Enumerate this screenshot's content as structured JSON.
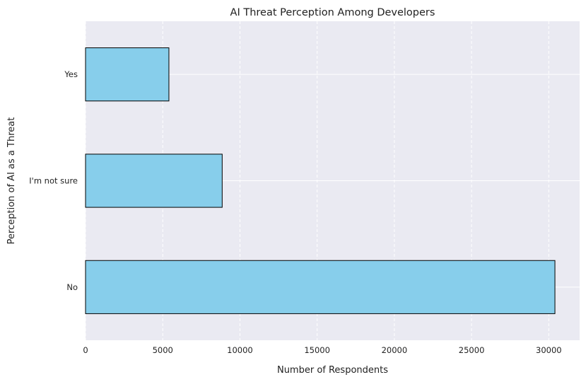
{
  "chart_data": {
    "type": "bar",
    "orientation": "horizontal",
    "title": "AI Threat Perception Among Developers",
    "xlabel": "Number of Respondents",
    "ylabel": "Perception of AI as a Threat",
    "categories": [
      "Yes",
      "I'm not sure",
      "No"
    ],
    "values": [
      5400,
      8850,
      30400
    ],
    "xlim": [
      0,
      32000
    ],
    "xticks": [
      0,
      5000,
      10000,
      15000,
      20000,
      25000,
      30000
    ],
    "grid": true,
    "bar_color": "#87CEEB",
    "bar_edge_color": "#000000",
    "background_color": "#EAEAF2"
  }
}
